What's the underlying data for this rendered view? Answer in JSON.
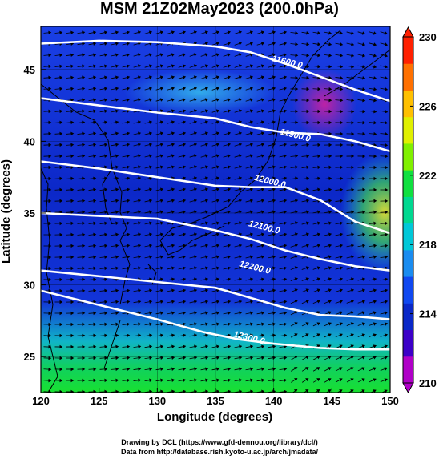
{
  "title": "MSM 21Z02May2023 (200.0hPa)",
  "x_axis": {
    "label": "Longitude (degrees)",
    "ticks": [
      {
        "v": 120,
        "t": "120"
      },
      {
        "v": 125,
        "t": "125"
      },
      {
        "v": 130,
        "t": "130"
      },
      {
        "v": 135,
        "t": "135"
      },
      {
        "v": 140,
        "t": "140"
      },
      {
        "v": 145,
        "t": "145"
      },
      {
        "v": 150,
        "t": "150"
      }
    ],
    "range": [
      120,
      150
    ]
  },
  "y_axis": {
    "label": "Latitude  (degrees)",
    "ticks": [
      {
        "v": 25,
        "t": "25"
      },
      {
        "v": 30,
        "t": "30"
      },
      {
        "v": 35,
        "t": "35"
      },
      {
        "v": 40,
        "t": "40"
      },
      {
        "v": 45,
        "t": "45"
      }
    ],
    "range": [
      22.5,
      48
    ]
  },
  "colorbar": {
    "ticks": [
      {
        "v": 210,
        "t": "210"
      },
      {
        "v": 214,
        "t": "214"
      },
      {
        "v": 218,
        "t": "218"
      },
      {
        "v": 222,
        "t": "222"
      },
      {
        "v": 226,
        "t": "226"
      },
      {
        "v": 230,
        "t": "230"
      }
    ],
    "range": [
      210,
      230
    ],
    "colors": [
      "#b000c8",
      "#3c00c8",
      "#0a28c8",
      "#1048f0",
      "#1a8cf0",
      "#00c8d8",
      "#00d890",
      "#10e040",
      "#80f000",
      "#e0f000",
      "#ffc000",
      "#ff7000",
      "#ff2000"
    ]
  },
  "contours": [
    {
      "label": "11600.0",
      "pts": [
        [
          120,
          46.8
        ],
        [
          125,
          47.0
        ],
        [
          130,
          46.9
        ],
        [
          135,
          46.6
        ],
        [
          138,
          46.2
        ],
        [
          141,
          45.4
        ],
        [
          144,
          44.5
        ],
        [
          147,
          43.6
        ],
        [
          150,
          42.8
        ]
      ],
      "label_at": [
        139.8,
        45.6
      ]
    },
    {
      "label": "11900.0",
      "pts": [
        [
          120,
          43.0
        ],
        [
          125,
          42.5
        ],
        [
          130,
          42.0
        ],
        [
          135,
          41.6
        ],
        [
          138,
          41.0
        ],
        [
          141,
          40.6
        ],
        [
          144,
          40.5
        ],
        [
          147,
          40.0
        ],
        [
          150,
          39.3
        ]
      ],
      "label_at": [
        140.5,
        40.5
      ]
    },
    {
      "label": "12000.0",
      "pts": [
        [
          120,
          38.6
        ],
        [
          125,
          38.1
        ],
        [
          130,
          37.5
        ],
        [
          135,
          36.9
        ],
        [
          138,
          36.8
        ],
        [
          141,
          36.8
        ],
        [
          144,
          35.9
        ],
        [
          147,
          34.4
        ],
        [
          150,
          33.6
        ]
      ],
      "label_at": [
        138.3,
        37.3
      ]
    },
    {
      "label": "12100.0",
      "pts": [
        [
          120,
          35.0
        ],
        [
          125,
          34.8
        ],
        [
          130,
          34.6
        ],
        [
          135,
          33.8
        ],
        [
          138,
          33.2
        ],
        [
          141,
          32.4
        ],
        [
          144,
          31.8
        ],
        [
          147,
          31.3
        ],
        [
          150,
          31.0
        ]
      ],
      "label_at": [
        137.8,
        34.1
      ]
    },
    {
      "label": "12200.0",
      "pts": [
        [
          120,
          31.0
        ],
        [
          125,
          30.6
        ],
        [
          130,
          30.2
        ],
        [
          135,
          29.8
        ],
        [
          138,
          29.1
        ],
        [
          141,
          28.4
        ],
        [
          144,
          27.9
        ],
        [
          147,
          27.8
        ],
        [
          150,
          27.6
        ]
      ],
      "label_at": [
        137.0,
        31.3
      ]
    },
    {
      "label": "12300.0",
      "pts": [
        [
          120,
          29.6
        ],
        [
          125,
          28.6
        ],
        [
          130,
          27.6
        ],
        [
          134,
          26.7
        ],
        [
          137,
          26.2
        ],
        [
          140,
          25.9
        ],
        [
          144,
          25.6
        ],
        [
          147,
          25.5
        ],
        [
          150,
          25.5
        ]
      ],
      "label_at": [
        136.5,
        26.4
      ]
    }
  ],
  "credits": {
    "line1": "Drawing by DCL (https://www.gfd-dennou.org/library/dcl/)",
    "line2": "Data from http://database.rish.kyoto-u.ac.jp/arch/jmadata/"
  }
}
